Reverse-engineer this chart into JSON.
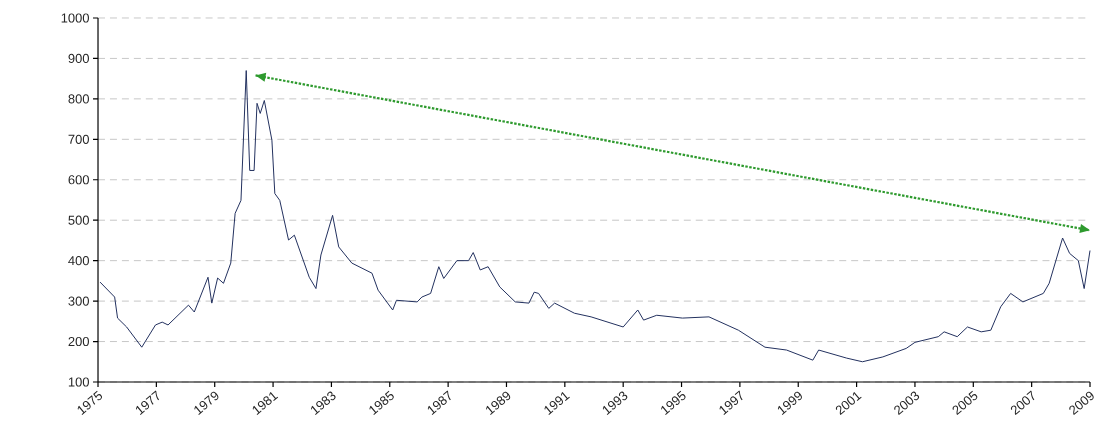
{
  "chart_data": {
    "type": "line",
    "xlim": [
      1975,
      2009
    ],
    "ylim": [
      100,
      1000
    ],
    "xticks": [
      1975,
      1977,
      1979,
      1981,
      1983,
      1985,
      1987,
      1989,
      1991,
      1993,
      1995,
      1997,
      1999,
      2001,
      2003,
      2005,
      2007,
      2009
    ],
    "yticks": [
      100,
      200,
      300,
      400,
      500,
      600,
      700,
      800,
      900,
      1000
    ],
    "grid": "y",
    "series": [
      {
        "color": "#22305e",
        "line_style": "solid",
        "x": [
          1975.07,
          1975.57,
          1975.67,
          1975.98,
          1976.5,
          1976.97,
          1977.2,
          1977.4,
          1978.1,
          1978.3,
          1978.77,
          1978.9,
          1979.1,
          1979.3,
          1979.55,
          1979.7,
          1979.9,
          1980.08,
          1980.2,
          1980.35,
          1980.45,
          1980.56,
          1980.7,
          1980.96,
          1981.06,
          1981.23,
          1981.53,
          1981.73,
          1982.24,
          1982.47,
          1982.64,
          1983.04,
          1983.25,
          1983.7,
          1984.39,
          1984.6,
          1985.1,
          1985.23,
          1985.94,
          1986.1,
          1986.4,
          1986.68,
          1986.85,
          1987.3,
          1987.7,
          1987.86,
          1988.1,
          1988.37,
          1988.77,
          1989.3,
          1989.77,
          1989.95,
          1990.1,
          1990.45,
          1990.65,
          1991.33,
          1991.9,
          1993.0,
          1993.5,
          1993.7,
          1994.15,
          1995.03,
          1995.94,
          1996.95,
          1997.86,
          1998.6,
          1999.5,
          1999.7,
          2000.66,
          2001.2,
          2001.9,
          2002.7,
          2003.0,
          2003.8,
          2004.0,
          2004.45,
          2004.8,
          2005.27,
          2005.6,
          2005.94,
          2006.28,
          2006.7,
          2007.4,
          2007.6,
          2008.06,
          2008.3,
          2008.6,
          2008.8,
          2009.0
        ],
        "values": [
          347,
          310,
          258,
          236,
          186,
          241,
          248,
          241,
          290,
          273,
          359,
          295,
          357,
          344,
          394,
          517,
          549,
          870,
          623,
          623,
          789,
          764,
          796,
          698,
          566,
          549,
          451,
          463,
          359,
          331,
          414,
          512,
          434,
          394,
          369,
          327,
          278,
          302,
          298,
          310,
          319,
          385,
          356,
          400,
          400,
          420,
          377,
          385,
          335,
          298,
          295,
          322,
          319,
          282,
          295,
          270,
          261,
          236,
          278,
          253,
          265,
          258,
          261,
          228,
          186,
          179,
          154,
          179,
          159,
          150,
          162,
          183,
          198,
          212,
          224,
          212,
          236,
          224,
          228,
          286,
          319,
          298,
          319,
          344,
          456,
          418,
          400,
          331,
          425
        ]
      },
      {
        "color": "#2e9a2e",
        "line_style": "dotted",
        "x": [
          1980.4,
          2009.0
        ],
        "values": [
          858,
          475
        ]
      }
    ]
  }
}
